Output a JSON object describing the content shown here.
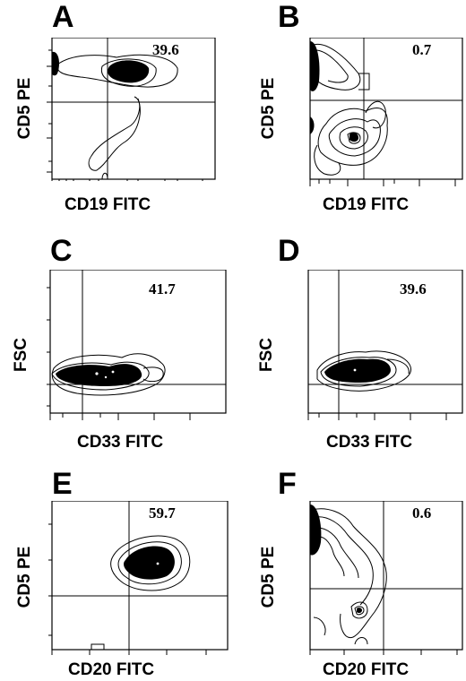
{
  "panels": [
    {
      "id": "A",
      "x_label": "CD19 FITC",
      "y_label": "CD5 PE",
      "percentage": "39.6"
    },
    {
      "id": "B",
      "x_label": "CD19 FITC",
      "y_label": "CD5 PE",
      "percentage": "0.7"
    },
    {
      "id": "C",
      "x_label": "CD33 FITC",
      "y_label": "FSC",
      "percentage": "41.7"
    },
    {
      "id": "D",
      "x_label": "CD33 FITC",
      "y_label": "FSC",
      "percentage": "39.6"
    },
    {
      "id": "E",
      "x_label": "CD20 FITC",
      "y_label": "CD5 PE",
      "percentage": "59.7"
    },
    {
      "id": "F",
      "x_label": "CD20 FITC",
      "y_label": "CD5 PE",
      "percentage": "0.6"
    }
  ]
}
